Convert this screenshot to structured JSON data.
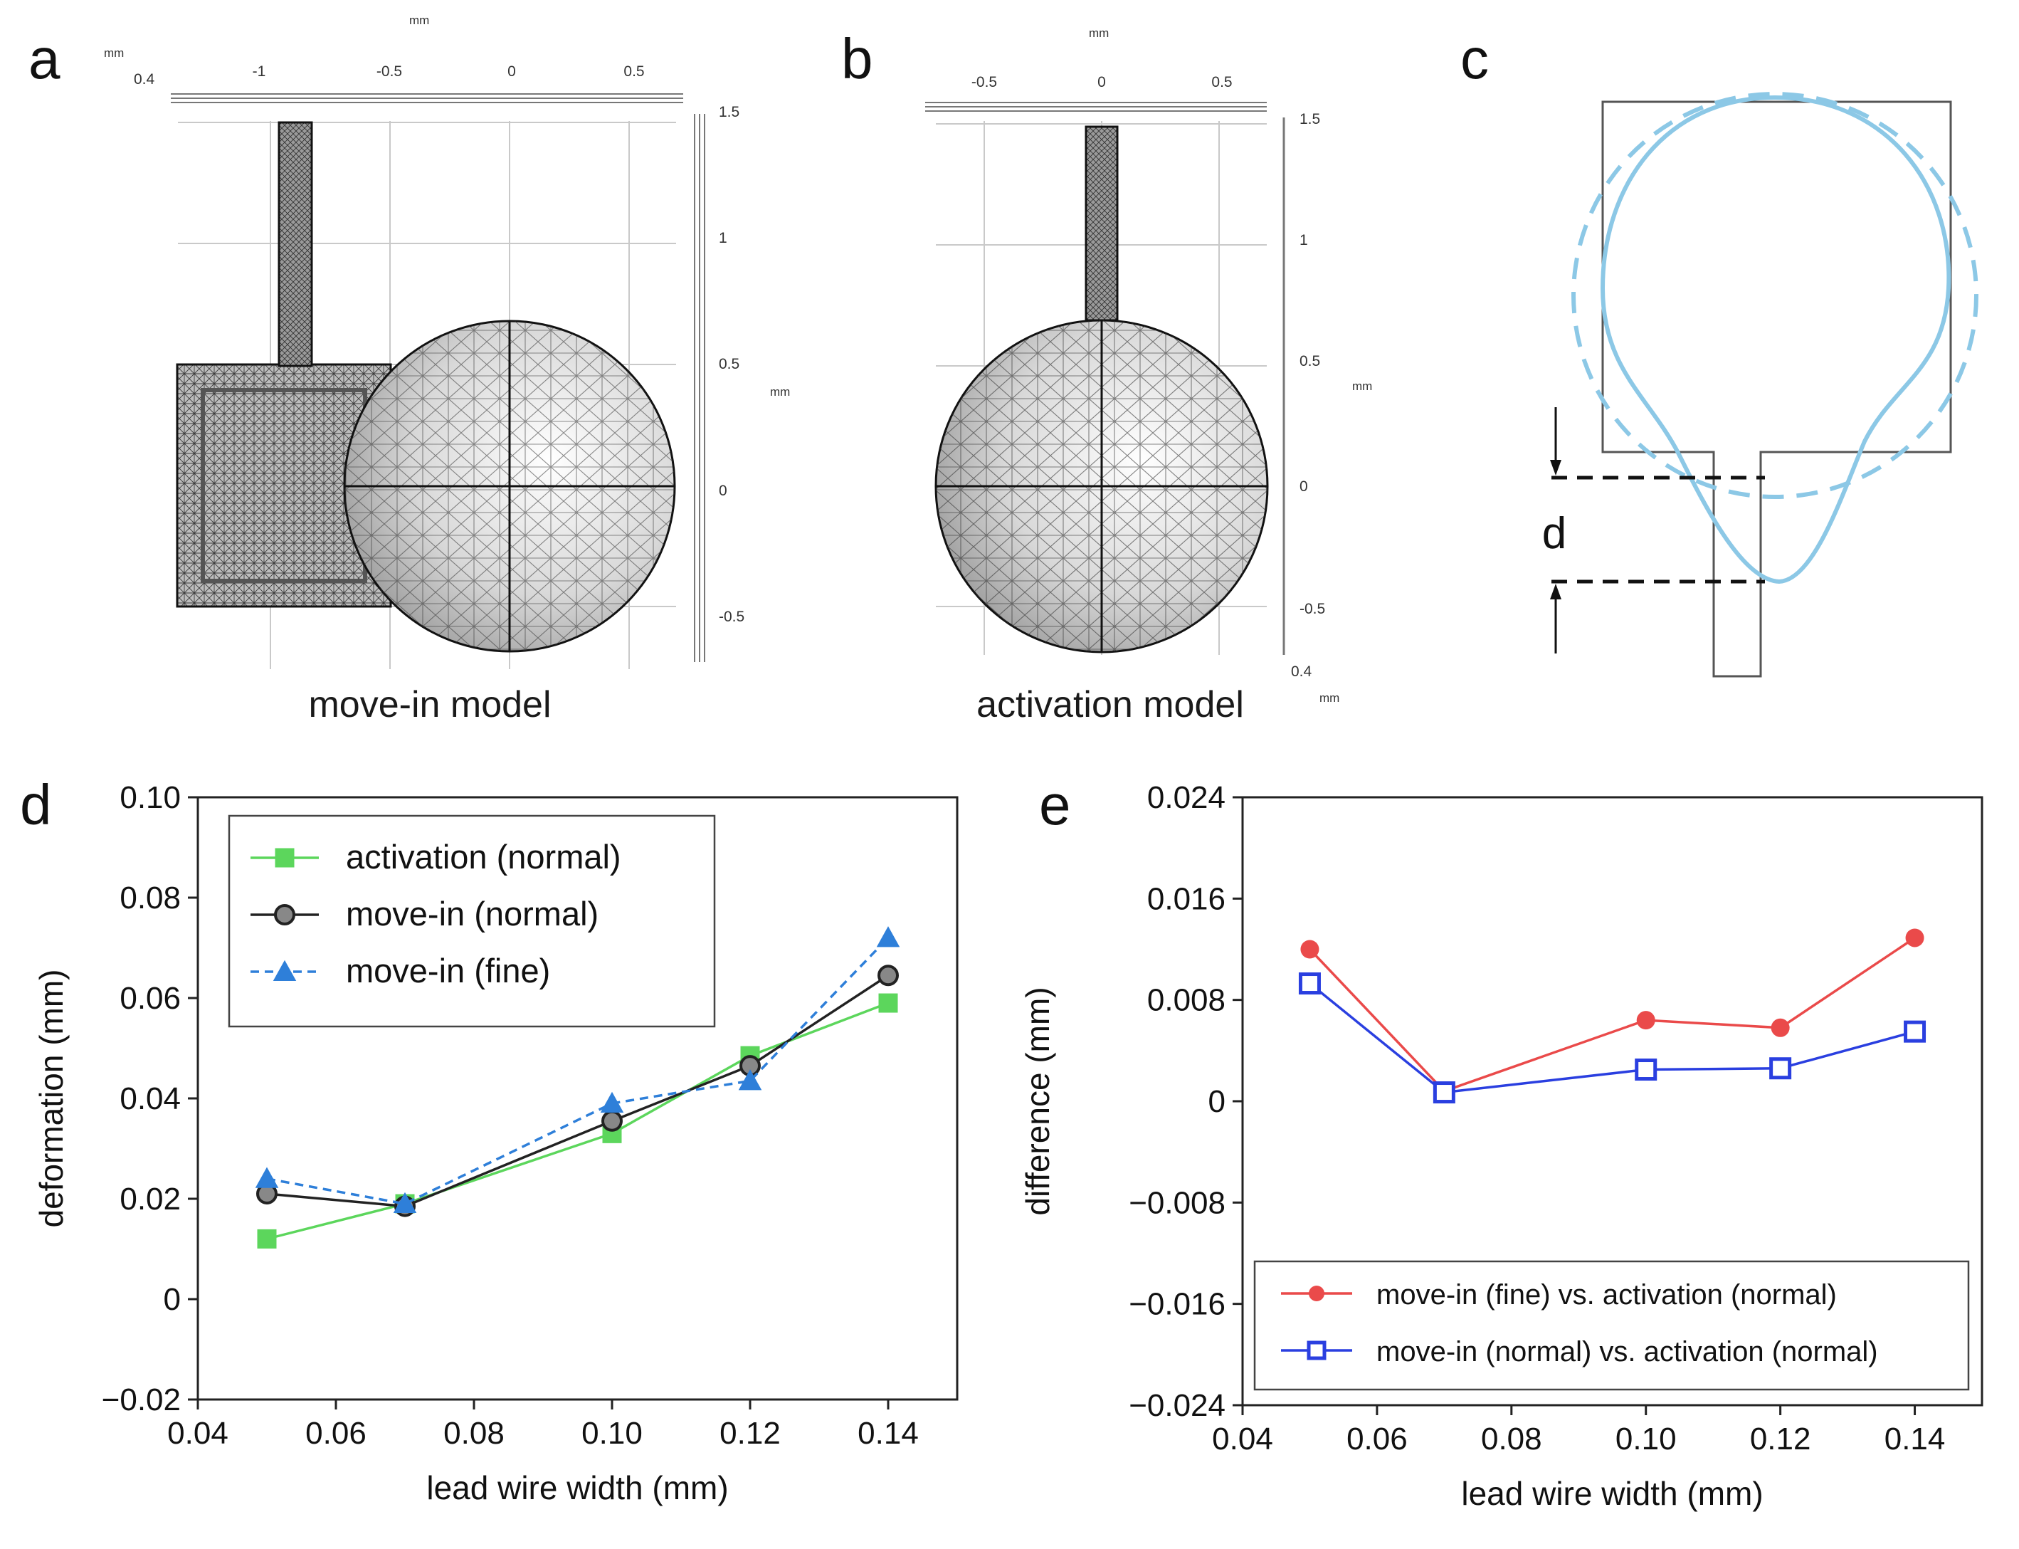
{
  "panels": {
    "a": {
      "letter": "a",
      "caption": "move-in model",
      "unit_top": "mm",
      "unit_right": "mm",
      "corner_value": "0.4",
      "corner_unit": "mm",
      "top_ticks": [
        "-1",
        "-0.5",
        "0",
        "0.5"
      ],
      "right_ticks": [
        "1.5",
        "1",
        "0.5",
        "0",
        "-0.5"
      ]
    },
    "b": {
      "letter": "b",
      "caption": "activation model",
      "unit_top": "mm",
      "unit_right": "mm",
      "corner_value": "0.4",
      "corner_unit": "mm",
      "top_ticks": [
        "-0.5",
        "0",
        "0.5"
      ],
      "right_ticks": [
        "1.5",
        "1",
        "0.5",
        "0",
        "-0.5"
      ]
    },
    "c": {
      "letter": "c",
      "dimension_label": "d"
    },
    "d": {
      "letter": "d"
    },
    "e": {
      "letter": "e"
    }
  },
  "colors": {
    "green": "#5cd65c",
    "black": "#222222",
    "blue_tri": "#2e7fd9",
    "red": "#ea4a4a",
    "blue_sq": "#2a3fe0",
    "light_blue": "#8cc8e6"
  },
  "chart_data": [
    {
      "id": "d",
      "type": "line",
      "title": "",
      "xlabel": "lead wire width (mm)",
      "ylabel": "deformation (mm)",
      "xlim": [
        0.04,
        0.15
      ],
      "ylim": [
        -0.02,
        0.1
      ],
      "xticks": [
        0.04,
        0.06,
        0.08,
        0.1,
        0.12,
        0.14
      ],
      "xtick_labels": [
        "0.04",
        "0.06",
        "0.08",
        "0.10",
        "0.12",
        "0.14"
      ],
      "yticks": [
        -0.02,
        0,
        0.02,
        0.04,
        0.06,
        0.08,
        0.1
      ],
      "ytick_labels": [
        "−0.02",
        "0",
        "0.02",
        "0.04",
        "0.06",
        "0.08",
        "0.10"
      ],
      "x": [
        0.05,
        0.07,
        0.1,
        0.12,
        0.14
      ],
      "legend_position": "top-left",
      "series": [
        {
          "name": "activation (normal)",
          "values": [
            0.012,
            0.019,
            0.033,
            0.0485,
            0.059
          ],
          "color": "#5cd65c",
          "marker": "square",
          "dashed": false
        },
        {
          "name": "move-in (normal)",
          "values": [
            0.021,
            0.0185,
            0.0355,
            0.0465,
            0.0645
          ],
          "color": "#222222",
          "marker": "circle",
          "dashed": false
        },
        {
          "name": "move-in (fine)",
          "values": [
            0.024,
            0.019,
            0.039,
            0.0435,
            0.072
          ],
          "color": "#2e7fd9",
          "marker": "triangle",
          "dashed": true
        }
      ]
    },
    {
      "id": "e",
      "type": "line",
      "title": "",
      "xlabel": "lead wire width (mm)",
      "ylabel": "difference (mm)",
      "xlim": [
        0.04,
        0.15
      ],
      "ylim": [
        -0.024,
        0.024
      ],
      "xticks": [
        0.04,
        0.06,
        0.08,
        0.1,
        0.12,
        0.14
      ],
      "xtick_labels": [
        "0.04",
        "0.06",
        "0.08",
        "0.10",
        "0.12",
        "0.14"
      ],
      "yticks": [
        -0.024,
        -0.016,
        -0.008,
        0,
        0.008,
        0.016,
        0.024
      ],
      "ytick_labels": [
        "−0.024",
        "−0.016",
        "−0.008",
        "0",
        "0.008",
        "0.016",
        "0.024"
      ],
      "x": [
        0.05,
        0.07,
        0.1,
        0.12,
        0.14
      ],
      "legend_position": "bottom-right",
      "series": [
        {
          "name": "move-in (fine) vs. activation (normal)",
          "values": [
            0.012,
            0.0008,
            0.0064,
            0.0058,
            0.0129
          ],
          "color": "#ea4a4a",
          "marker": "circle",
          "dashed": false
        },
        {
          "name": "move-in (normal) vs. activation (normal)",
          "values": [
            0.0093,
            0.0007,
            0.0025,
            0.0026,
            0.0055
          ],
          "color": "#2a3fe0",
          "marker": "open-square",
          "dashed": false
        }
      ]
    }
  ]
}
